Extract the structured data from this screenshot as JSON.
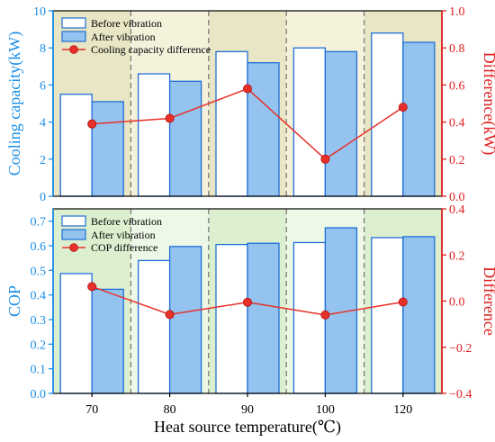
{
  "colors": {
    "bar_before_fill": "#ffffff",
    "bar_before_stroke": "#1f6fd8",
    "bar_after_fill": "#93c3ee",
    "bar_after_stroke": "#1f6fd8",
    "diff_line": "#e8302a",
    "left_axis": "#1a8fe8",
    "right_axis": "#e02020",
    "top_bg_light": "#f5f2dc",
    "top_bg_dark": "#e8e6c4",
    "bottom_bg_light": "#edf8e6",
    "bottom_bg_dark": "#dcf0d0",
    "divider": "#7a7a7a"
  },
  "chart_data": [
    {
      "type": "bar",
      "categories": [
        "70",
        "80",
        "90",
        "100",
        "120"
      ],
      "series": [
        {
          "name": "Before vibration",
          "kind": "bar",
          "axis": "left",
          "values": [
            5.5,
            6.6,
            7.8,
            8.0,
            8.8
          ]
        },
        {
          "name": "After vibration",
          "kind": "bar",
          "axis": "left",
          "values": [
            5.1,
            6.2,
            7.2,
            7.8,
            8.3
          ]
        },
        {
          "name": "Cooling capacity difference",
          "kind": "line",
          "axis": "right",
          "values": [
            0.39,
            0.42,
            0.58,
            0.2,
            0.48
          ]
        }
      ],
      "ylabel": "Cooling capacity(kW)",
      "y2label": "Difference(kW)",
      "ylim": [
        0,
        10
      ],
      "y2lim": [
        0,
        1.0
      ],
      "yticks": [
        "0",
        "2",
        "4",
        "6",
        "8",
        "10"
      ],
      "y2ticks": [
        "0.0",
        "0.2",
        "0.4",
        "0.6",
        "0.8",
        "1.0"
      ],
      "legend": "top-left"
    },
    {
      "type": "bar",
      "categories": [
        "70",
        "80",
        "90",
        "100",
        "120"
      ],
      "series": [
        {
          "name": "Before vibration",
          "kind": "bar",
          "axis": "left",
          "values": [
            0.487,
            0.54,
            0.605,
            0.613,
            0.633
          ]
        },
        {
          "name": "After vibration",
          "kind": "bar",
          "axis": "left",
          "values": [
            0.423,
            0.597,
            0.61,
            0.673,
            0.637
          ]
        },
        {
          "name": "COP difference",
          "kind": "line",
          "axis": "right",
          "values": [
            0.063,
            -0.058,
            -0.005,
            -0.06,
            -0.004
          ]
        }
      ],
      "xlabel": "Heat source temperature(℃)",
      "ylabel": "COP",
      "y2label": "Difference",
      "ylim": [
        0,
        0.75
      ],
      "y2lim": [
        -0.4,
        0.4
      ],
      "yticks": [
        "0.0",
        "0.1",
        "0.2",
        "0.3",
        "0.4",
        "0.5",
        "0.6",
        "0.7"
      ],
      "y2ticks": [
        "−0.4",
        "−0.2",
        "0.0",
        "0.2",
        "0.4"
      ],
      "legend": "top-left"
    }
  ]
}
